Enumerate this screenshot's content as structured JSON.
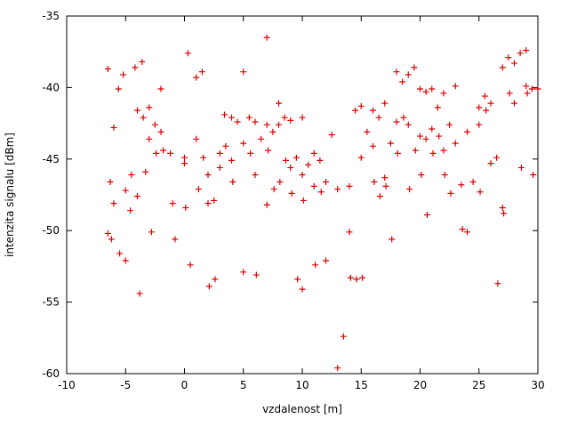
{
  "chart_data": {
    "type": "scatter",
    "title": "",
    "xlabel": "vzdalenost [m]",
    "ylabel": "intenzita signalu [dBm]",
    "xlim": [
      -10,
      30
    ],
    "ylim": [
      -60,
      -35
    ],
    "x_ticks": [
      "-10",
      "-5",
      "0",
      "5",
      "10",
      "15",
      "20",
      "25",
      "30"
    ],
    "x_tick_values": [
      -10,
      -5,
      0,
      5,
      10,
      15,
      20,
      25,
      30
    ],
    "y_ticks": [
      "-60",
      "-55",
      "-50",
      "-45",
      "-40",
      "-35"
    ],
    "y_tick_values": [
      -60,
      -55,
      -50,
      -45,
      -40,
      -35
    ],
    "grid": false,
    "legend": "none",
    "marker": "plus",
    "marker_color": "#dd0000",
    "axis_color": "#000000",
    "points": [
      [
        -6.5,
        -38.7
      ],
      [
        -6.5,
        -50.2
      ],
      [
        -6.3,
        -46.6
      ],
      [
        -6.2,
        -50.6
      ],
      [
        -6,
        -42.8
      ],
      [
        -6,
        -48.1
      ],
      [
        -5.6,
        -40.1
      ],
      [
        -5.5,
        -51.6
      ],
      [
        -5.2,
        -39.1
      ],
      [
        -5,
        -47.2
      ],
      [
        -5,
        -52.1
      ],
      [
        -4.6,
        -48.6
      ],
      [
        -4.5,
        -46.1
      ],
      [
        -4.2,
        -38.6
      ],
      [
        -4,
        -41.6
      ],
      [
        -4,
        -47.6
      ],
      [
        -3.8,
        -54.4
      ],
      [
        -3.6,
        -38.2
      ],
      [
        -3.5,
        -42.1
      ],
      [
        -3.3,
        -45.9
      ],
      [
        -3,
        -41.4
      ],
      [
        -3,
        -43.6
      ],
      [
        -2.8,
        -50.1
      ],
      [
        -2.5,
        -42.6
      ],
      [
        -2.4,
        -44.6
      ],
      [
        -2,
        -40.1
      ],
      [
        -2,
        -43.1
      ],
      [
        -1.8,
        -44.4
      ],
      [
        -1.2,
        -44.6
      ],
      [
        -1,
        -48.1
      ],
      [
        -0.8,
        -50.6
      ],
      [
        0,
        -44.9
      ],
      [
        0,
        -45.3
      ],
      [
        0.1,
        -48.4
      ],
      [
        0.3,
        -37.6
      ],
      [
        0.5,
        -52.4
      ],
      [
        1,
        -39.3
      ],
      [
        1,
        -43.6
      ],
      [
        1.2,
        -47.1
      ],
      [
        1.5,
        -38.9
      ],
      [
        1.6,
        -44.9
      ],
      [
        2,
        -46.1
      ],
      [
        2,
        -48.1
      ],
      [
        2.1,
        -53.9
      ],
      [
        2.5,
        -47.9
      ],
      [
        2.6,
        -53.4
      ],
      [
        3,
        -44.6
      ],
      [
        3,
        -45.6
      ],
      [
        3.4,
        -41.9
      ],
      [
        3.5,
        -44.1
      ],
      [
        4,
        -42.1
      ],
      [
        4,
        -45.1
      ],
      [
        4.1,
        -46.6
      ],
      [
        4.5,
        -42.4
      ],
      [
        5,
        -38.9
      ],
      [
        5,
        -43.9
      ],
      [
        5,
        -52.9
      ],
      [
        5.5,
        -42.1
      ],
      [
        5.6,
        -44.6
      ],
      [
        6,
        -42.4
      ],
      [
        6,
        -46.1
      ],
      [
        6.1,
        -53.1
      ],
      [
        6.5,
        -43.6
      ],
      [
        7,
        -36.5
      ],
      [
        7,
        -42.6
      ],
      [
        7.1,
        -44.4
      ],
      [
        7,
        -48.2
      ],
      [
        7.5,
        -43.1
      ],
      [
        7.6,
        -47.1
      ],
      [
        8,
        -41.1
      ],
      [
        8,
        -42.6
      ],
      [
        8.1,
        -46.6
      ],
      [
        8.5,
        -42.1
      ],
      [
        8.6,
        -45.1
      ],
      [
        9,
        -42.3
      ],
      [
        9,
        -45.6
      ],
      [
        9.1,
        -47.4
      ],
      [
        9.5,
        -44.9
      ],
      [
        9.6,
        -53.4
      ],
      [
        10,
        -42.1
      ],
      [
        10,
        -46.1
      ],
      [
        10.1,
        -47.9
      ],
      [
        10,
        -54.1
      ],
      [
        10.5,
        -45.4
      ],
      [
        11,
        -44.6
      ],
      [
        11,
        -46.9
      ],
      [
        11.1,
        -52.4
      ],
      [
        11.5,
        -45.1
      ],
      [
        11.6,
        -47.3
      ],
      [
        12,
        -46.6
      ],
      [
        12,
        -52.1
      ],
      [
        12.5,
        -43.3
      ],
      [
        13,
        -47.1
      ],
      [
        13,
        -59.6
      ],
      [
        13.5,
        -57.4
      ],
      [
        14,
        -46.9
      ],
      [
        14,
        -50.1
      ],
      [
        14.1,
        -53.3
      ],
      [
        14.5,
        -41.6
      ],
      [
        14.6,
        -53.4
      ],
      [
        15,
        -41.3
      ],
      [
        15,
        -44.9
      ],
      [
        15.1,
        -53.3
      ],
      [
        15.5,
        -43.1
      ],
      [
        16,
        -41.6
      ],
      [
        16,
        -44.1
      ],
      [
        16.1,
        -46.6
      ],
      [
        16.5,
        -42.1
      ],
      [
        16.6,
        -47.6
      ],
      [
        17,
        -41.1
      ],
      [
        17,
        -46.3
      ],
      [
        17.1,
        -46.9
      ],
      [
        17.5,
        -43.9
      ],
      [
        17.6,
        -50.6
      ],
      [
        18,
        -38.9
      ],
      [
        18,
        -42.4
      ],
      [
        18.1,
        -44.6
      ],
      [
        18.5,
        -39.6
      ],
      [
        18.6,
        -42.1
      ],
      [
        19,
        -39.1
      ],
      [
        19,
        -42.6
      ],
      [
        19.1,
        -47.1
      ],
      [
        19.5,
        -38.6
      ],
      [
        19.6,
        -44.4
      ],
      [
        20,
        -40.1
      ],
      [
        20,
        -43.4
      ],
      [
        20.1,
        -46.1
      ],
      [
        20.5,
        -40.3
      ],
      [
        20.5,
        -43.6
      ],
      [
        20.6,
        -48.9
      ],
      [
        21,
        -40.1
      ],
      [
        21,
        -42.9
      ],
      [
        21.1,
        -44.6
      ],
      [
        21.5,
        -41.4
      ],
      [
        21.6,
        -43.4
      ],
      [
        22,
        -40.4
      ],
      [
        22,
        -44.4
      ],
      [
        22.1,
        -46.1
      ],
      [
        22.5,
        -42.6
      ],
      [
        22.6,
        -47.4
      ],
      [
        23,
        -39.9
      ],
      [
        23,
        -43.9
      ],
      [
        23.5,
        -46.8
      ],
      [
        23.6,
        -49.9
      ],
      [
        24,
        -43.1
      ],
      [
        24,
        -50.1
      ],
      [
        24.5,
        -46.6
      ],
      [
        25,
        -41.4
      ],
      [
        25,
        -42.6
      ],
      [
        25.1,
        -47.3
      ],
      [
        25.5,
        -40.6
      ],
      [
        25.6,
        -41.6
      ],
      [
        26,
        -41.1
      ],
      [
        26,
        -45.3
      ],
      [
        26.5,
        -44.9
      ],
      [
        26.6,
        -53.7
      ],
      [
        27,
        -38.6
      ],
      [
        27,
        -48.4
      ],
      [
        27.1,
        -48.8
      ],
      [
        27.5,
        -37.9
      ],
      [
        27.6,
        -40.4
      ],
      [
        28,
        -38.3
      ],
      [
        28,
        -41.1
      ],
      [
        28.5,
        -37.6
      ],
      [
        28.6,
        -45.6
      ],
      [
        29,
        -37.4
      ],
      [
        29,
        -39.9
      ],
      [
        29.1,
        -40.4
      ],
      [
        29.5,
        -40.1
      ],
      [
        29.6,
        -46.1
      ],
      [
        30,
        -40.1
      ]
    ]
  }
}
